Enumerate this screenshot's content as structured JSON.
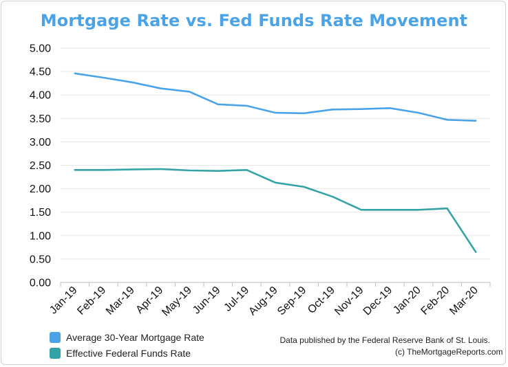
{
  "chart_data": {
    "type": "line",
    "title": "Mortgage Rate vs. Fed Funds Rate Movement",
    "categories": [
      "Jan-19",
      "Feb-19",
      "Mar-19",
      "Apr-19",
      "May-19",
      "Jun-19",
      "Jul-19",
      "Aug-19",
      "Sep-19",
      "Oct-19",
      "Nov-19",
      "Dec-19",
      "Jan-20",
      "Feb-20",
      "Mar-20"
    ],
    "series": [
      {
        "name": "Average 30-Year Mortgage Rate",
        "color": "#4aa3e6",
        "values": [
          4.46,
          4.37,
          4.27,
          4.14,
          4.07,
          3.8,
          3.77,
          3.62,
          3.61,
          3.69,
          3.7,
          3.72,
          3.62,
          3.47,
          3.45
        ]
      },
      {
        "name": "Effective Federal Funds Rate",
        "color": "#34a3a6",
        "values": [
          2.4,
          2.4,
          2.41,
          2.42,
          2.39,
          2.38,
          2.4,
          2.13,
          2.04,
          1.83,
          1.55,
          1.55,
          1.55,
          1.58,
          0.65
        ]
      }
    ],
    "yticks": [
      "0.00",
      "0.50",
      "1.00",
      "1.50",
      "2.00",
      "2.50",
      "3.00",
      "3.50",
      "4.00",
      "4.50",
      "5.00"
    ],
    "ylim": [
      0,
      5
    ],
    "grid": true,
    "legend_position": "bottom-left"
  },
  "footer": {
    "source_line1": "Data published by the Federal Reserve Bank of St. Louis.",
    "source_line2": "(c) TheMortgageReports.com"
  }
}
